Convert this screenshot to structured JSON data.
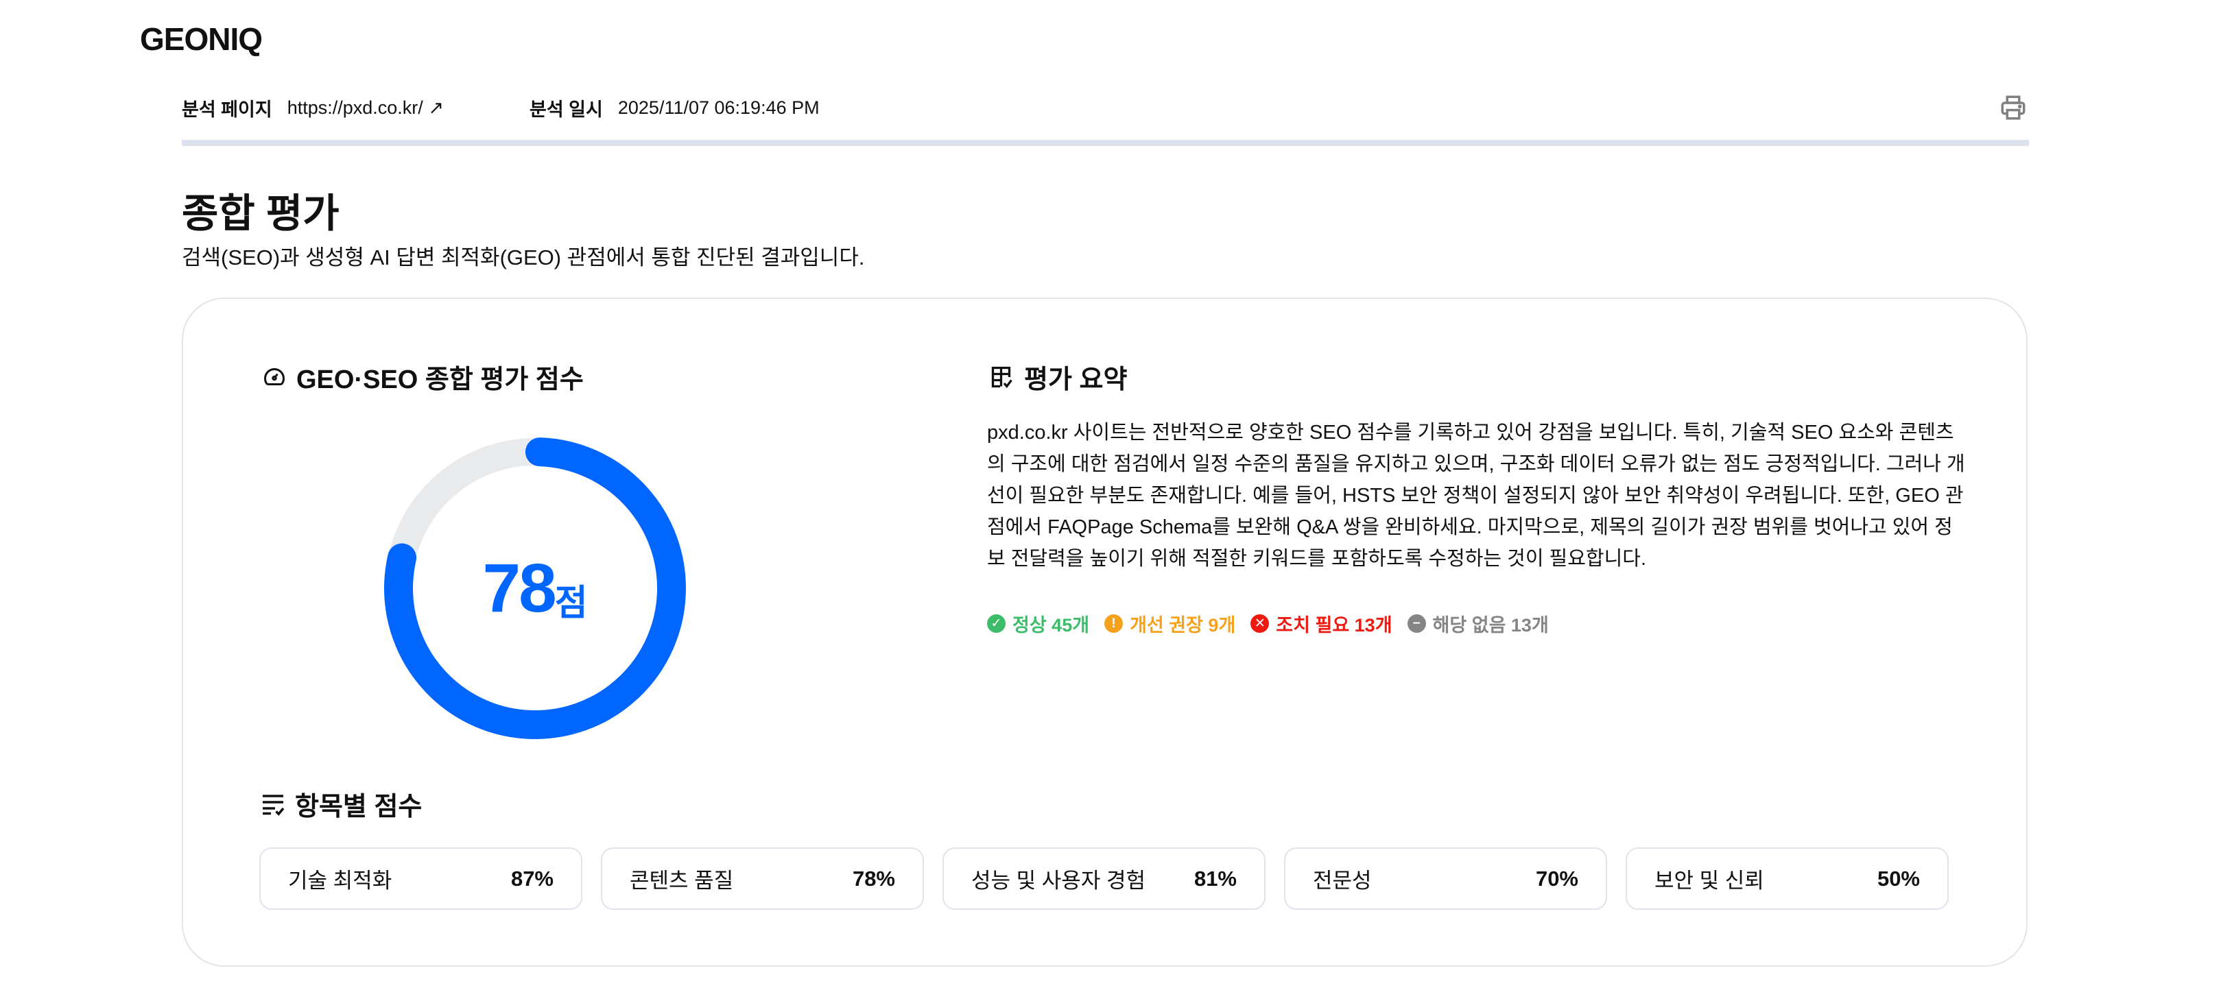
{
  "brand": "GEONIQ",
  "meta": {
    "page_label": "분석 페이지",
    "page_url": "https://pxd.co.kr/",
    "external_icon": "↗",
    "date_label": "분석 일시",
    "date_value": "2025/11/07 06:19:46 PM",
    "print_icon": "printer-icon"
  },
  "header": {
    "title": "종합 평가",
    "subtitle": "검색(SEO)과 생성형 AI 답변 최적화(GEO) 관점에서 통합 진단된 결과입니다."
  },
  "score": {
    "title": "GEO·SEO 종합 평가 점수",
    "value": "78",
    "unit": "점",
    "percent": 78,
    "color": "#0066ff",
    "track_color": "#e9eaec"
  },
  "summary": {
    "title": "평가 요약",
    "text": "pxd.co.kr 사이트는 전반적으로 양호한 SEO 점수를 기록하고 있어 강점을 보입니다. 특히, 기술적 SEO 요소와 콘텐츠의 구조에 대한 점검에서 일정 수준의 품질을 유지하고 있으며, 구조화 데이터 오류가 없는 점도 긍정적입니다. 그러나 개선이 필요한 부분도 존재합니다. 예를 들어, HSTS 보안 정책이 설정되지 않아 보안 취약성이 우려됩니다. 또한, GEO 관점에서 FAQPage Schema를 보완해 Q&A 쌍을 완비하세요. 마지막으로, 제목의 길이가 권장 범위를 벗어나고 있어 정보 전달력을 높이기 위해 적절한 키워드를 포함하도록 수정하는 것이 필요합니다.",
    "stats": [
      {
        "label": "정상 45개",
        "icon": "check",
        "glyph": "✓",
        "color": "#3dbd6a"
      },
      {
        "label": "개선 권장 9개",
        "icon": "exclamation",
        "glyph": "!",
        "color": "#f5a11b"
      },
      {
        "label": "조치 필요 13개",
        "icon": "x",
        "glyph": "✕",
        "color": "#ee1a0f"
      },
      {
        "label": "해당 없음 13개",
        "icon": "minus",
        "glyph": "−",
        "color": "#858585"
      }
    ]
  },
  "items": {
    "title": "항목별 점수",
    "list": [
      {
        "label": "기술 최적화",
        "value": "87%"
      },
      {
        "label": "콘텐츠 품질",
        "value": "78%"
      },
      {
        "label": "성능 및 사용자 경험",
        "value": "81%"
      },
      {
        "label": "전문성",
        "value": "70%"
      },
      {
        "label": "보안 및 신뢰",
        "value": "50%"
      }
    ]
  }
}
